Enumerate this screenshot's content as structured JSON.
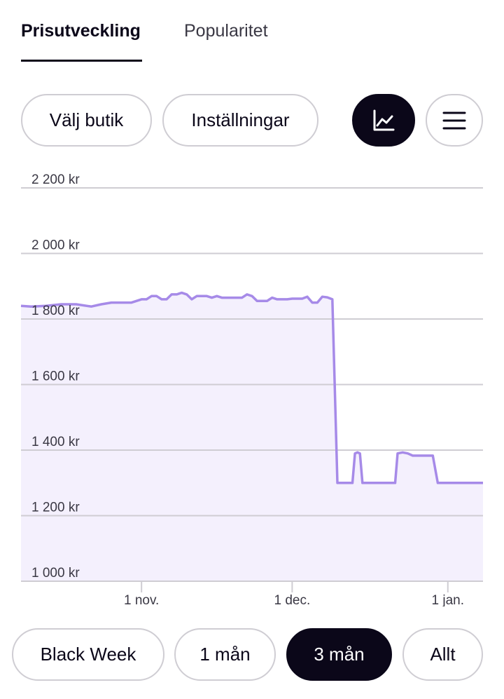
{
  "tabs": [
    {
      "label": "Prisutveckling",
      "active": true
    },
    {
      "label": "Popularitet",
      "active": false
    }
  ],
  "controls": {
    "store_button": "Välj butik",
    "settings_button": "Inställningar",
    "chart_view_icon": "line-chart-icon",
    "list_view_icon": "hamburger-menu-icon"
  },
  "range_buttons": [
    {
      "label": "Black Week",
      "selected": false
    },
    {
      "label": "1 mån",
      "selected": false
    },
    {
      "label": "3 mån",
      "selected": true
    },
    {
      "label": "Allt",
      "selected": false
    }
  ],
  "colors": {
    "accent_dark": "#0b0719",
    "line": "#a68ae8",
    "area_fill": "#f4f0fd",
    "grid": "#cfcdd3"
  },
  "chart_data": {
    "type": "area",
    "title": "",
    "xlabel": "",
    "ylabel": "",
    "ylim": [
      1000,
      2200
    ],
    "yticks": [
      {
        "value": 2200,
        "label": "2 200 kr"
      },
      {
        "value": 2000,
        "label": "2 000 kr"
      },
      {
        "value": 1800,
        "label": "1 800 kr"
      },
      {
        "value": 1600,
        "label": "1 600 kr"
      },
      {
        "value": 1400,
        "label": "1 400 kr"
      },
      {
        "value": 1200,
        "label": "1 200 kr"
      },
      {
        "value": 1000,
        "label": "1 000 kr"
      }
    ],
    "xlim": [
      0,
      92
    ],
    "xticks": [
      {
        "value": 24,
        "label": "1 nov."
      },
      {
        "value": 54,
        "label": "1 dec."
      },
      {
        "value": 85,
        "label": "1 jan."
      }
    ],
    "grid": true,
    "x": [
      0,
      2,
      5,
      8,
      11,
      14,
      16,
      18,
      20,
      22,
      24,
      25,
      26,
      27,
      28,
      29,
      30,
      31,
      32,
      33,
      34,
      35,
      36,
      37,
      38,
      39,
      40,
      41,
      42,
      43,
      44,
      45,
      46,
      47,
      48,
      49,
      50,
      51,
      52,
      53,
      54,
      55,
      56,
      57,
      58,
      59,
      60,
      61,
      62,
      63,
      64,
      65,
      66,
      66.5,
      67,
      67.5,
      68,
      69,
      70,
      71,
      72,
      73,
      74,
      74.5,
      75,
      76,
      77,
      78,
      79,
      80,
      81,
      82,
      83,
      84,
      85,
      85.5,
      86,
      87,
      88,
      89,
      90,
      91,
      92
    ],
    "values": [
      1840,
      1838,
      1840,
      1845,
      1845,
      1838,
      1845,
      1850,
      1850,
      1850,
      1860,
      1860,
      1870,
      1870,
      1860,
      1860,
      1875,
      1875,
      1880,
      1875,
      1860,
      1870,
      1870,
      1870,
      1865,
      1870,
      1865,
      1865,
      1865,
      1865,
      1865,
      1875,
      1870,
      1855,
      1855,
      1855,
      1865,
      1860,
      1860,
      1860,
      1862,
      1862,
      1862,
      1868,
      1850,
      1850,
      1868,
      1866,
      1860,
      1300,
      1300,
      1300,
      1300,
      1390,
      1393,
      1390,
      1300,
      1300,
      1300,
      1300,
      1300,
      1300,
      1300,
      1300,
      1390,
      1393,
      1390,
      1383,
      1383,
      1383,
      1383,
      1383,
      1300,
      1300,
      1300,
      1300,
      1300,
      1300,
      1300,
      1300,
      1300,
      1300,
      1300
    ]
  }
}
